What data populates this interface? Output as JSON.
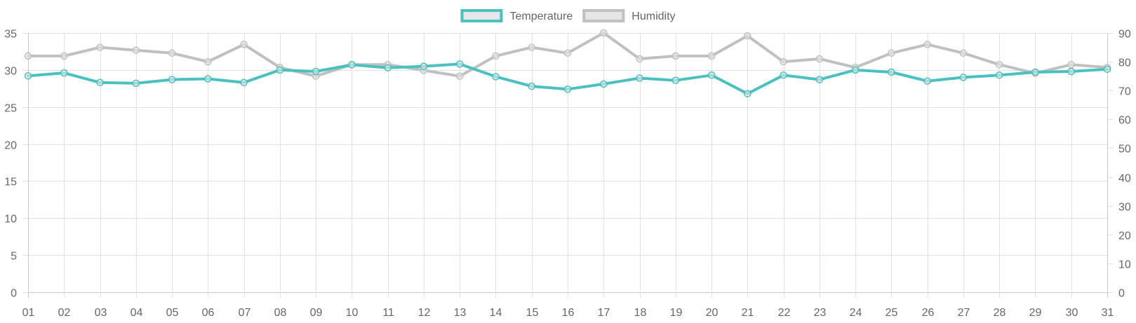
{
  "chart_data": {
    "type": "line",
    "categories": [
      "01",
      "02",
      "03",
      "04",
      "05",
      "06",
      "07",
      "08",
      "09",
      "10",
      "11",
      "12",
      "13",
      "14",
      "15",
      "16",
      "17",
      "18",
      "19",
      "20",
      "21",
      "22",
      "23",
      "24",
      "25",
      "26",
      "27",
      "28",
      "29",
      "30",
      "31"
    ],
    "series": [
      {
        "name": "Temperature",
        "axis": "left",
        "color": "#4bc0c0",
        "values": [
          29.2,
          29.6,
          28.3,
          28.2,
          28.7,
          28.8,
          28.3,
          30.0,
          29.8,
          30.7,
          30.3,
          30.5,
          30.8,
          29.1,
          27.8,
          27.4,
          28.1,
          28.9,
          28.6,
          29.3,
          26.8,
          29.3,
          28.7,
          30.0,
          29.7,
          28.5,
          29.0,
          29.3,
          29.7,
          29.8,
          30.1
        ]
      },
      {
        "name": "Humidity",
        "axis": "right",
        "color": "#c0c0c0",
        "values": [
          82,
          82,
          85,
          84,
          83,
          80,
          86,
          78,
          75,
          79,
          79,
          77,
          75,
          82,
          85,
          83,
          90,
          81,
          82,
          82,
          89,
          80,
          81,
          78,
          83,
          86,
          83,
          79,
          76,
          79,
          78
        ]
      }
    ],
    "y_left": {
      "min": 0,
      "max": 35,
      "ticks": [
        0,
        5,
        10,
        15,
        20,
        25,
        30,
        35
      ]
    },
    "y_right": {
      "min": 0,
      "max": 90,
      "ticks": [
        0,
        10,
        20,
        30,
        40,
        50,
        60,
        70,
        80,
        90
      ]
    },
    "grid": true,
    "legend_position": "top-center"
  }
}
